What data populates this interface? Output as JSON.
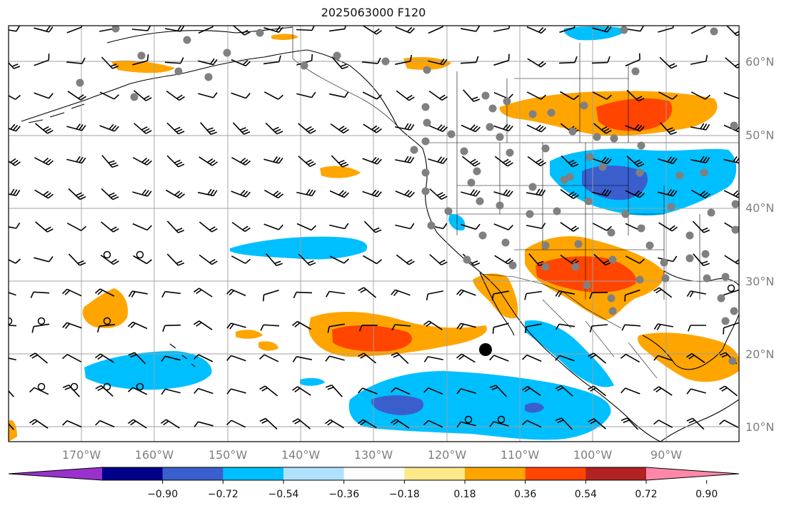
{
  "title": "2025063000 F120",
  "map": {
    "lat_labels": [
      "60°N",
      "50°N",
      "40°N",
      "30°N",
      "20°N",
      "10°N"
    ],
    "lon_labels": [
      "170°W",
      "160°W",
      "150°W",
      "140°W",
      "130°W",
      "120°W",
      "110°W",
      "100°W",
      "90°W"
    ],
    "colors": {
      "land_line": "#000000",
      "grid": "#a0a0a0",
      "barb": "#000000",
      "station": "#808080"
    }
  },
  "colorbar": {
    "colors": [
      "#9932cc",
      "#00008b",
      "#3a5fcd",
      "#00bfff",
      "#b0e2ff",
      "#ffffff",
      "#fbe98a",
      "#ffa500",
      "#ff4500",
      "#b22222",
      "#ff88aa"
    ],
    "tick_labels": [
      "−0.90",
      "−0.72",
      "−0.54",
      "−0.36",
      "−0.18",
      "0.18",
      "0.36",
      "0.54",
      "0.72",
      "0.90"
    ]
  }
}
